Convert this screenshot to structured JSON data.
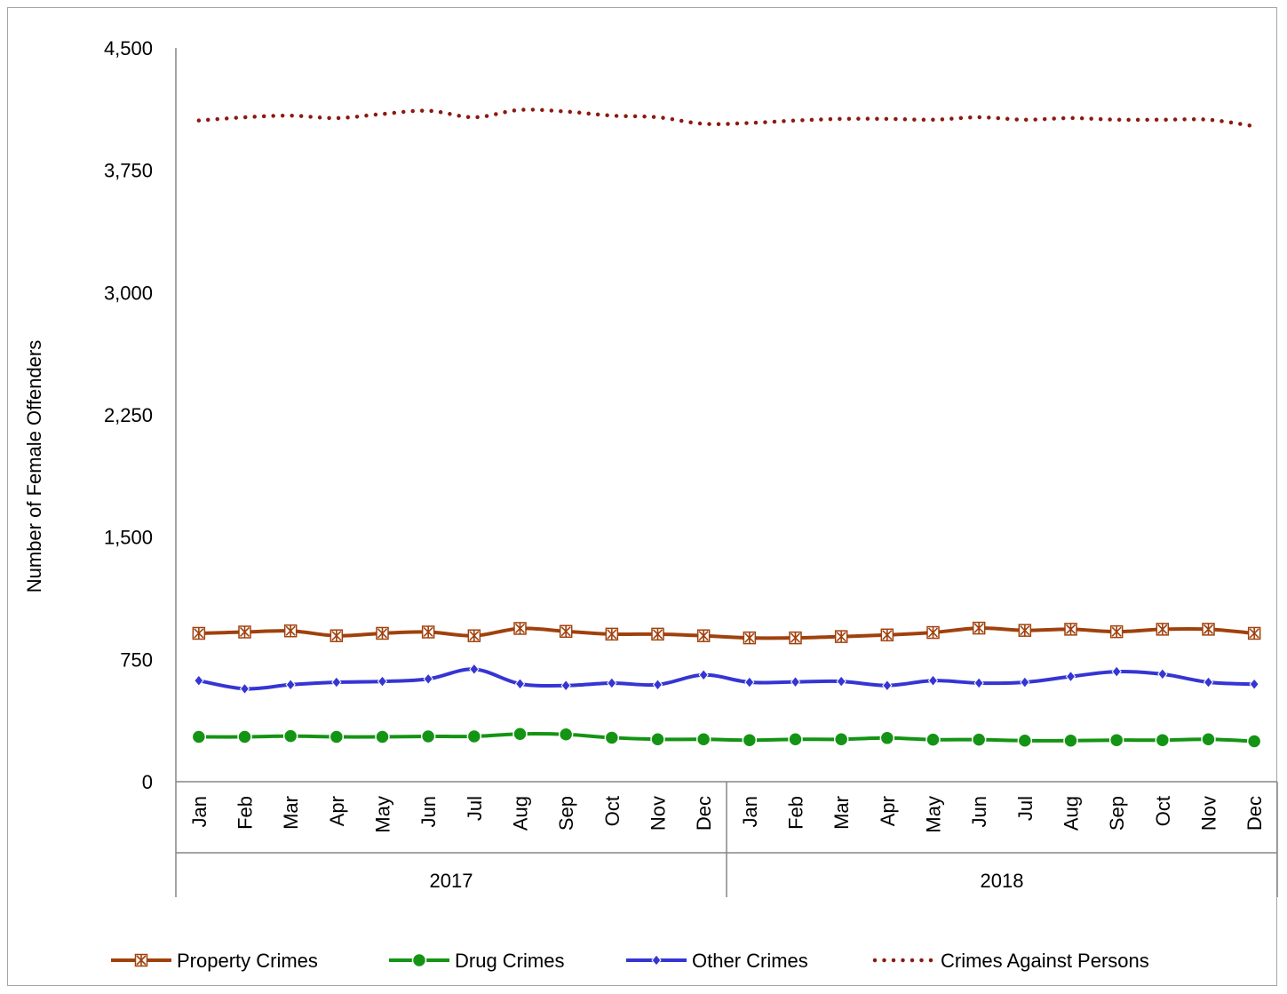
{
  "chart_data": {
    "type": "line",
    "ylabel": "Number of Female Offenders",
    "xlabel": "",
    "ylim": [
      0,
      4500
    ],
    "yticks": [
      0,
      750,
      1500,
      2250,
      3000,
      3750,
      4500
    ],
    "ytick_labels": [
      "0",
      "750",
      "1,500",
      "2,250",
      "3,000",
      "3,750",
      "4,500"
    ],
    "grid": false,
    "legend_position": "bottom",
    "categories": [
      "Jan",
      "Feb",
      "Mar",
      "Apr",
      "May",
      "Jun",
      "Jul",
      "Aug",
      "Sep",
      "Oct",
      "Nov",
      "Dec",
      "Jan",
      "Feb",
      "Mar",
      "Apr",
      "May",
      "Jun",
      "Jul",
      "Aug",
      "Sep",
      "Oct",
      "Nov",
      "Dec"
    ],
    "groups": [
      {
        "label": "2017",
        "start": 0,
        "end": 11
      },
      {
        "label": "2018",
        "start": 12,
        "end": 23
      }
    ],
    "series": [
      {
        "name": "Property Crimes",
        "color": "#a0410d",
        "marker": "star",
        "style": "solid",
        "values": [
          910,
          918,
          925,
          895,
          910,
          918,
          895,
          940,
          922,
          905,
          905,
          895,
          882,
          882,
          890,
          900,
          915,
          942,
          928,
          935,
          920,
          935,
          935,
          910
        ]
      },
      {
        "name": "Drug Crimes",
        "color": "#149414",
        "marker": "circle",
        "style": "solid",
        "values": [
          275,
          275,
          280,
          275,
          275,
          278,
          278,
          293,
          290,
          270,
          260,
          260,
          255,
          260,
          260,
          268,
          258,
          258,
          252,
          252,
          255,
          255,
          260,
          248
        ]
      },
      {
        "name": "Other Crimes",
        "color": "#3535d4",
        "marker": "diamond",
        "style": "solid",
        "values": [
          620,
          570,
          595,
          610,
          615,
          630,
          690,
          600,
          590,
          605,
          595,
          655,
          610,
          612,
          615,
          590,
          620,
          605,
          610,
          645,
          675,
          660,
          610,
          598
        ]
      },
      {
        "name": "Crimes Against Persons",
        "color": "#8b1a10",
        "marker": "none",
        "style": "dotted",
        "values": [
          4055,
          4075,
          4085,
          4070,
          4095,
          4115,
          4075,
          4120,
          4110,
          4085,
          4075,
          4035,
          4040,
          4055,
          4065,
          4065,
          4060,
          4075,
          4060,
          4070,
          4060,
          4060,
          4060,
          4020
        ]
      }
    ]
  }
}
